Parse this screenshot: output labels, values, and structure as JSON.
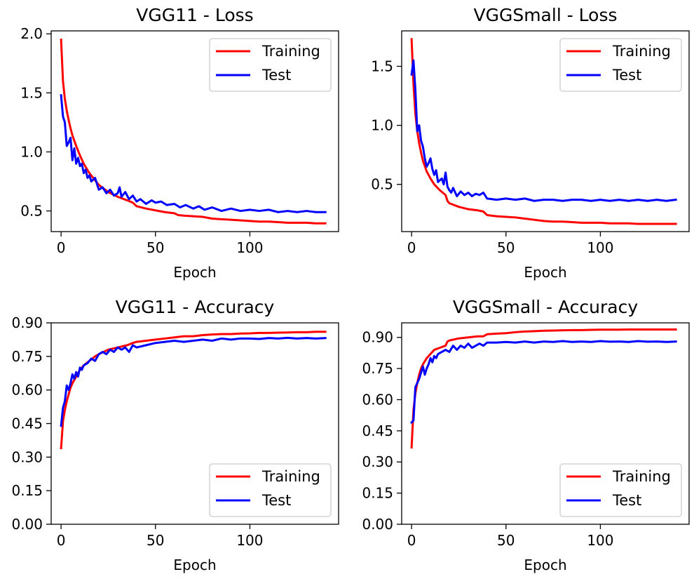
{
  "chart_data": [
    {
      "type": "line",
      "title": "VGG11 - Loss",
      "xlabel": "Epoch",
      "ylabel": "",
      "xlim": [
        -5.25,
        147
      ],
      "ylim": [
        0.325,
        2.025
      ],
      "xticks": [
        0,
        50,
        100
      ],
      "yticks": [
        0.5,
        1.0,
        1.5,
        2.0
      ],
      "ytick_labels": [
        "0.5",
        "1.0",
        "1.5",
        "2.0"
      ],
      "legend": "upper-right",
      "series": [
        {
          "name": "Training",
          "color": "#ff0000",
          "x": [
            0,
            1,
            2,
            3,
            4,
            5,
            6,
            8,
            10,
            12,
            15,
            18,
            20,
            25,
            30,
            35,
            38,
            40,
            45,
            50,
            55,
            60,
            62,
            65,
            70,
            75,
            80,
            85,
            90,
            95,
            100,
            105,
            110,
            115,
            120,
            125,
            130,
            135,
            140
          ],
          "y": [
            1.95,
            1.6,
            1.45,
            1.35,
            1.27,
            1.2,
            1.14,
            1.05,
            0.97,
            0.9,
            0.82,
            0.76,
            0.72,
            0.66,
            0.62,
            0.59,
            0.57,
            0.54,
            0.52,
            0.505,
            0.49,
            0.48,
            0.465,
            0.46,
            0.455,
            0.45,
            0.435,
            0.43,
            0.425,
            0.42,
            0.415,
            0.41,
            0.41,
            0.405,
            0.4,
            0.4,
            0.4,
            0.395,
            0.395
          ]
        },
        {
          "name": "Test",
          "color": "#0000ff",
          "x": [
            0,
            1,
            2,
            3,
            4,
            5,
            6,
            7,
            8,
            9,
            10,
            11,
            12,
            13,
            14,
            15,
            16,
            18,
            20,
            22,
            24,
            26,
            28,
            30,
            31,
            32,
            34,
            36,
            38,
            40,
            42,
            45,
            48,
            50,
            53,
            56,
            60,
            63,
            66,
            70,
            73,
            76,
            80,
            85,
            90,
            95,
            100,
            105,
            110,
            115,
            120,
            125,
            130,
            135,
            140
          ],
          "y": [
            1.48,
            1.3,
            1.25,
            1.05,
            1.08,
            1.12,
            0.93,
            1.03,
            0.9,
            0.95,
            0.88,
            0.9,
            0.82,
            0.85,
            0.78,
            0.8,
            0.75,
            0.78,
            0.68,
            0.7,
            0.65,
            0.68,
            0.63,
            0.65,
            0.7,
            0.62,
            0.66,
            0.6,
            0.63,
            0.58,
            0.6,
            0.56,
            0.59,
            0.57,
            0.58,
            0.55,
            0.56,
            0.53,
            0.55,
            0.52,
            0.54,
            0.51,
            0.53,
            0.5,
            0.52,
            0.5,
            0.51,
            0.5,
            0.51,
            0.49,
            0.5,
            0.49,
            0.5,
            0.49,
            0.49
          ]
        }
      ]
    },
    {
      "type": "line",
      "title": "VGGSmall - Loss",
      "xlabel": "Epoch",
      "ylabel": "",
      "xlim": [
        -5.25,
        147
      ],
      "ylim": [
        0.1,
        1.8
      ],
      "xticks": [
        0,
        50,
        100
      ],
      "yticks": [
        0.5,
        1.0,
        1.5
      ],
      "ytick_labels": [
        "0.5",
        "1.0",
        "1.5"
      ],
      "legend": "upper-right",
      "series": [
        {
          "name": "Training",
          "color": "#ff0000",
          "x": [
            0,
            1,
            2,
            3,
            4,
            5,
            6,
            8,
            10,
            12,
            15,
            18,
            19,
            20,
            25,
            30,
            35,
            38,
            40,
            45,
            50,
            55,
            60,
            65,
            70,
            75,
            80,
            85,
            90,
            95,
            100,
            105,
            110,
            115,
            120,
            125,
            130,
            135,
            140
          ],
          "y": [
            1.73,
            1.35,
            1.1,
            0.95,
            0.85,
            0.77,
            0.7,
            0.61,
            0.55,
            0.5,
            0.45,
            0.41,
            0.36,
            0.34,
            0.31,
            0.29,
            0.28,
            0.27,
            0.24,
            0.23,
            0.225,
            0.22,
            0.21,
            0.2,
            0.19,
            0.185,
            0.185,
            0.18,
            0.175,
            0.175,
            0.175,
            0.17,
            0.17,
            0.17,
            0.165,
            0.165,
            0.165,
            0.165,
            0.165
          ]
        },
        {
          "name": "Test",
          "color": "#0000ff",
          "x": [
            0,
            1,
            2,
            3,
            4,
            5,
            6,
            7,
            8,
            9,
            10,
            11,
            12,
            13,
            14,
            16,
            17,
            18,
            19,
            20,
            21,
            22,
            24,
            26,
            28,
            30,
            32,
            34,
            36,
            38,
            40,
            45,
            50,
            55,
            60,
            65,
            70,
            75,
            80,
            85,
            90,
            95,
            100,
            105,
            110,
            115,
            120,
            125,
            130,
            135,
            140
          ],
          "y": [
            1.43,
            1.55,
            1.3,
            0.95,
            1.0,
            0.87,
            0.82,
            0.72,
            0.65,
            0.68,
            0.72,
            0.63,
            0.58,
            0.62,
            0.52,
            0.55,
            0.5,
            0.6,
            0.48,
            0.45,
            0.43,
            0.47,
            0.4,
            0.44,
            0.41,
            0.43,
            0.4,
            0.42,
            0.41,
            0.43,
            0.38,
            0.37,
            0.38,
            0.37,
            0.38,
            0.36,
            0.37,
            0.37,
            0.36,
            0.37,
            0.37,
            0.36,
            0.37,
            0.36,
            0.37,
            0.36,
            0.37,
            0.36,
            0.37,
            0.36,
            0.37
          ]
        }
      ]
    },
    {
      "type": "line",
      "title": "VGG11 - Accuracy",
      "xlabel": "Epoch",
      "ylabel": "",
      "xlim": [
        -5.25,
        147
      ],
      "ylim": [
        0,
        0.9
      ],
      "xticks": [
        0,
        50,
        100
      ],
      "yticks": [
        0,
        0.15,
        0.3,
        0.45,
        0.6,
        0.75,
        0.9
      ],
      "ytick_labels": [
        "0.00",
        "0.15",
        "0.30",
        "0.45",
        "0.60",
        "0.75",
        "0.90"
      ],
      "legend": "lower-right",
      "series": [
        {
          "name": "Training",
          "color": "#ff0000",
          "x": [
            0,
            1,
            2,
            3,
            4,
            5,
            6,
            8,
            10,
            12,
            15,
            18,
            20,
            25,
            30,
            35,
            38,
            40,
            45,
            50,
            55,
            60,
            65,
            70,
            75,
            80,
            85,
            90,
            95,
            100,
            105,
            110,
            115,
            120,
            125,
            130,
            135,
            140
          ],
          "y": [
            0.34,
            0.46,
            0.51,
            0.55,
            0.58,
            0.61,
            0.63,
            0.66,
            0.69,
            0.71,
            0.73,
            0.75,
            0.76,
            0.78,
            0.79,
            0.8,
            0.81,
            0.815,
            0.82,
            0.825,
            0.83,
            0.835,
            0.84,
            0.84,
            0.845,
            0.848,
            0.85,
            0.85,
            0.852,
            0.853,
            0.855,
            0.855,
            0.856,
            0.857,
            0.858,
            0.858,
            0.86,
            0.86
          ]
        },
        {
          "name": "Test",
          "color": "#0000ff",
          "x": [
            0,
            1,
            2,
            3,
            4,
            5,
            6,
            7,
            8,
            9,
            10,
            11,
            12,
            14,
            16,
            18,
            20,
            22,
            24,
            26,
            28,
            30,
            32,
            34,
            36,
            38,
            40,
            45,
            50,
            55,
            60,
            65,
            70,
            75,
            80,
            85,
            90,
            95,
            100,
            105,
            110,
            115,
            120,
            125,
            130,
            135,
            140
          ],
          "y": [
            0.44,
            0.52,
            0.55,
            0.62,
            0.6,
            0.63,
            0.67,
            0.65,
            0.68,
            0.66,
            0.7,
            0.69,
            0.71,
            0.72,
            0.74,
            0.73,
            0.76,
            0.77,
            0.76,
            0.78,
            0.77,
            0.79,
            0.78,
            0.79,
            0.77,
            0.8,
            0.79,
            0.8,
            0.81,
            0.815,
            0.82,
            0.815,
            0.82,
            0.825,
            0.82,
            0.83,
            0.825,
            0.83,
            0.83,
            0.828,
            0.832,
            0.83,
            0.833,
            0.83,
            0.832,
            0.83,
            0.832
          ]
        }
      ]
    },
    {
      "type": "line",
      "title": "VGGSmall - Accuracy",
      "xlabel": "Epoch",
      "ylabel": "",
      "xlim": [
        -5.25,
        147
      ],
      "ylim": [
        0,
        0.97
      ],
      "xticks": [
        0,
        50,
        100
      ],
      "yticks": [
        0,
        0.15,
        0.3,
        0.45,
        0.6,
        0.75,
        0.9
      ],
      "ytick_labels": [
        "0.00",
        "0.15",
        "0.30",
        "0.45",
        "0.60",
        "0.75",
        "0.90"
      ],
      "legend": "lower-right",
      "series": [
        {
          "name": "Training",
          "color": "#ff0000",
          "x": [
            0,
            1,
            2,
            3,
            4,
            5,
            6,
            8,
            10,
            12,
            15,
            18,
            19,
            20,
            25,
            30,
            35,
            38,
            40,
            45,
            50,
            55,
            60,
            65,
            70,
            75,
            80,
            85,
            90,
            95,
            100,
            105,
            110,
            115,
            120,
            125,
            130,
            135,
            140
          ],
          "y": [
            0.37,
            0.55,
            0.63,
            0.68,
            0.72,
            0.75,
            0.77,
            0.8,
            0.82,
            0.84,
            0.85,
            0.86,
            0.88,
            0.885,
            0.895,
            0.9,
            0.905,
            0.905,
            0.915,
            0.918,
            0.92,
            0.925,
            0.928,
            0.93,
            0.932,
            0.933,
            0.934,
            0.935,
            0.935,
            0.936,
            0.937,
            0.937,
            0.937,
            0.938,
            0.938,
            0.938,
            0.938,
            0.938,
            0.938
          ]
        },
        {
          "name": "Test",
          "color": "#0000ff",
          "x": [
            0,
            1,
            2,
            3,
            4,
            5,
            6,
            7,
            8,
            9,
            10,
            11,
            12,
            13,
            14,
            16,
            18,
            20,
            22,
            24,
            26,
            28,
            30,
            32,
            34,
            36,
            38,
            40,
            45,
            50,
            55,
            60,
            65,
            70,
            75,
            80,
            85,
            90,
            95,
            100,
            105,
            110,
            115,
            120,
            125,
            130,
            135,
            140
          ],
          "y": [
            0.49,
            0.5,
            0.66,
            0.68,
            0.7,
            0.73,
            0.76,
            0.72,
            0.75,
            0.77,
            0.8,
            0.78,
            0.81,
            0.8,
            0.82,
            0.83,
            0.84,
            0.83,
            0.86,
            0.84,
            0.86,
            0.85,
            0.87,
            0.85,
            0.86,
            0.87,
            0.86,
            0.875,
            0.875,
            0.878,
            0.875,
            0.88,
            0.875,
            0.88,
            0.878,
            0.882,
            0.878,
            0.88,
            0.878,
            0.882,
            0.879,
            0.88,
            0.878,
            0.882,
            0.879,
            0.88,
            0.878,
            0.88
          ]
        }
      ]
    }
  ]
}
